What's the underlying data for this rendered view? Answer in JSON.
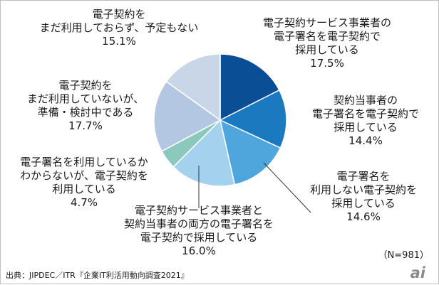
{
  "chart_data": {
    "type": "pie",
    "n_label": "（N=981）",
    "slices": [
      {
        "label_lines": [
          "電子契約サービス事業者の",
          "電子署名を電子契約で",
          "採用している"
        ],
        "value": 17.5,
        "value_text": "17.5%",
        "color": "#0a4f95"
      },
      {
        "label_lines": [
          "契約当事者の",
          "電子署名を電子契約で",
          "採用している"
        ],
        "value": 14.4,
        "value_text": "14.4%",
        "color": "#1b79bf"
      },
      {
        "label_lines": [
          "電子署名を",
          "利用しない電子契約を",
          "採用している"
        ],
        "value": 14.6,
        "value_text": "14.6%",
        "color": "#4ea6dc"
      },
      {
        "label_lines": [
          "電子契約サービス事業者と",
          "契約当事者の両方の電子署名を",
          "電子契約で採用している"
        ],
        "value": 16.0,
        "value_text": "16.0%",
        "color": "#a3d1ee"
      },
      {
        "label_lines": [
          "電子署名を利用しているか",
          "わからないが、電子契約を",
          "利用している"
        ],
        "value": 4.7,
        "value_text": "4.7%",
        "color": "#8cc9bd"
      },
      {
        "label_lines": [
          "電子契約を",
          "まだ利用していないが、",
          "準備・検討中である"
        ],
        "value": 17.7,
        "value_text": "17.7%",
        "color": "#b3c6e2"
      },
      {
        "label_lines": [
          "電子契約を",
          "まだ利用しておらず、予定もない"
        ],
        "value": 15.1,
        "value_text": "15.1%",
        "color": "#c9d6e8"
      }
    ]
  },
  "footer": {
    "source": "出典：JIPDEC／ITR『企業IT利活用動向調査2021』",
    "logo_text": "ai"
  }
}
